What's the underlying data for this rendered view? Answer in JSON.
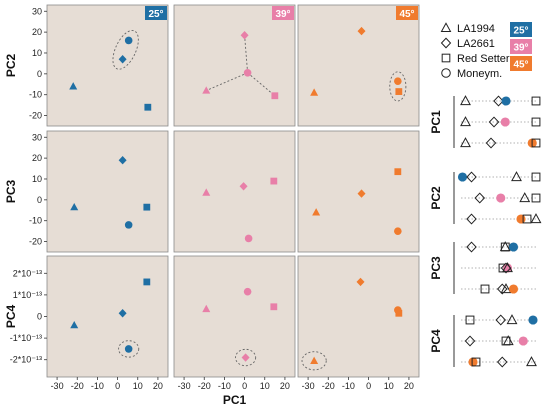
{
  "colors": {
    "25": "#1f6fa4",
    "39": "#e87fa8",
    "45": "#f07b2e",
    "panel_bg": "#e6ddd5",
    "gray": "#444444"
  },
  "chart_data": {
    "type": "scatter",
    "x_label": "PC1",
    "y_labels": [
      "PC2",
      "PC3",
      "PC4"
    ],
    "temperatures": [
      "25°",
      "39°",
      "45°"
    ],
    "xlim": [
      -35,
      25
    ],
    "x_ticks": [
      -30,
      -20,
      -10,
      0,
      10,
      20
    ],
    "rows": [
      {
        "name": "PC2",
        "ylim": [
          -25,
          33
        ],
        "ticks": [
          -20,
          -10,
          0,
          10,
          20,
          30
        ],
        "tick_labels": [
          "-20",
          "-10",
          "0",
          "10",
          "20",
          "30"
        ]
      },
      {
        "name": "PC3",
        "ylim": [
          -25,
          33
        ],
        "ticks": [
          -20,
          -10,
          0,
          10,
          20,
          30
        ],
        "tick_labels": [
          "-20",
          "-10",
          "0",
          "10",
          "20",
          "30"
        ]
      },
      {
        "name": "PC4",
        "ylim": [
          -2.8,
          2.8
        ],
        "ticks": [
          -2,
          -1,
          0,
          1,
          2
        ],
        "tick_labels": [
          "-2*10⁻¹³",
          "-1*10⁻¹³",
          "0",
          "1*10⁻¹³",
          "2*10⁻¹³"
        ]
      }
    ],
    "genotypes": [
      {
        "name": "LA1994",
        "shape": "triangle"
      },
      {
        "name": "LA2661",
        "shape": "diamond"
      },
      {
        "name": "Red Setter",
        "shape": "square"
      },
      {
        "name": "Moneym.",
        "shape": "circle"
      }
    ],
    "points": [
      [
        [
          [
            -22,
            -6
          ],
          [
            2.5,
            7
          ],
          [
            15,
            -16
          ],
          [
            5.5,
            16
          ]
        ],
        [
          [
            -19,
            -8
          ],
          [
            0,
            18.5
          ],
          [
            15,
            -10.5
          ],
          [
            1.5,
            0.5
          ]
        ],
        [
          [
            -27,
            -9
          ],
          [
            -3.5,
            20.5
          ],
          [
            15,
            -8.5
          ],
          [
            14.5,
            -3.5
          ]
        ]
      ],
      [
        [
          [
            -21.5,
            -3.5
          ],
          [
            2.5,
            19
          ],
          [
            14.5,
            -3.5
          ],
          [
            5.5,
            -12
          ]
        ],
        [
          [
            -19,
            3.5
          ],
          [
            -0.5,
            6.5
          ],
          [
            14.5,
            9
          ],
          [
            2,
            -18.5
          ]
        ],
        [
          [
            -26,
            -6
          ],
          [
            -3.5,
            3
          ],
          [
            14.5,
            13.5
          ],
          [
            14.5,
            -15
          ]
        ]
      ],
      [
        [
          [
            -21.5,
            -0.4
          ],
          [
            2.5,
            0.15
          ],
          [
            14.5,
            1.6
          ],
          [
            5.5,
            -1.5
          ]
        ],
        [
          [
            -19,
            0.35
          ],
          [
            0.5,
            -1.9
          ],
          [
            14.5,
            0.45
          ],
          [
            1.5,
            1.15
          ]
        ],
        [
          [
            -27,
            -2.05
          ],
          [
            -4,
            1.6
          ],
          [
            15,
            0.15
          ],
          [
            14.5,
            0.3
          ]
        ]
      ]
    ],
    "ellipses": [
      {
        "row": 0,
        "col": 0,
        "cx": 4,
        "cy": 11.5,
        "rx": 5,
        "ry": 10,
        "angle": 25
      },
      {
        "row": 0,
        "col": 2,
        "cx": 14.5,
        "cy": -6,
        "rx": 4,
        "ry": 7,
        "angle": 0
      },
      {
        "row": 2,
        "col": 0,
        "cx": 5.5,
        "cy": -1.5,
        "rx": 5,
        "ry": 0.38,
        "angle": 0
      },
      {
        "row": 2,
        "col": 1,
        "cx": 0.5,
        "cy": -1.9,
        "rx": 5,
        "ry": 0.38,
        "angle": 0
      },
      {
        "row": 2,
        "col": 2,
        "cx": -27,
        "cy": -2.05,
        "rx": 6,
        "ry": 0.42,
        "angle": 0
      }
    ],
    "star_panel": {
      "row": 0,
      "col": 1,
      "center_genotype": 3
    },
    "rank_panels": [
      {
        "name": "PC1",
        "rows": [
          [
            {
              "g": 0,
              "p": 0.06
            },
            {
              "g": 1,
              "p": 0.5
            },
            {
              "g": 3,
              "p": 0.6
            },
            {
              "g": 2,
              "p": 1.0
            }
          ],
          [
            {
              "g": 0,
              "p": 0.06
            },
            {
              "g": 1,
              "p": 0.44
            },
            {
              "g": 3,
              "p": 0.59
            },
            {
              "g": 2,
              "p": 1.0
            }
          ],
          [
            {
              "g": 0,
              "p": 0.06
            },
            {
              "g": 1,
              "p": 0.4
            },
            {
              "g": 3,
              "p": 0.95
            },
            {
              "g": 2,
              "p": 1.0
            }
          ]
        ]
      },
      {
        "name": "PC2",
        "rows": [
          [
            {
              "g": 3,
              "p": 0.02
            },
            {
              "g": 1,
              "p": 0.14
            },
            {
              "g": 0,
              "p": 0.74
            },
            {
              "g": 2,
              "p": 1.0
            }
          ],
          [
            {
              "g": 1,
              "p": 0.25
            },
            {
              "g": 3,
              "p": 0.53
            },
            {
              "g": 0,
              "p": 0.85
            },
            {
              "g": 2,
              "p": 1.0
            }
          ],
          [
            {
              "g": 1,
              "p": 0.14
            },
            {
              "g": 3,
              "p": 0.8
            },
            {
              "g": 2,
              "p": 0.88
            },
            {
              "g": 0,
              "p": 1.0
            }
          ]
        ]
      },
      {
        "name": "PC3",
        "rows": [
          [
            {
              "g": 1,
              "p": 0.14
            },
            {
              "g": 2,
              "p": 0.59
            },
            {
              "g": 0,
              "p": 0.59
            },
            {
              "g": 3,
              "p": 0.7
            }
          ],
          [
            {
              "g": 2,
              "p": 0.56
            },
            {
              "g": 3,
              "p": 0.62
            },
            {
              "g": 1,
              "p": 0.6
            },
            {
              "g": 0,
              "p": 0.62
            }
          ],
          [
            {
              "g": 2,
              "p": 0.32
            },
            {
              "g": 1,
              "p": 0.55
            },
            {
              "g": 0,
              "p": 0.6
            },
            {
              "g": 3,
              "p": 0.7
            }
          ]
        ]
      },
      {
        "name": "PC4",
        "rows": [
          [
            {
              "g": 2,
              "p": 0.12
            },
            {
              "g": 1,
              "p": 0.53
            },
            {
              "g": 0,
              "p": 0.68
            },
            {
              "g": 3,
              "p": 0.96
            }
          ],
          [
            {
              "g": 1,
              "p": 0.12
            },
            {
              "g": 2,
              "p": 0.6
            },
            {
              "g": 0,
              "p": 0.63
            },
            {
              "g": 3,
              "p": 0.83
            }
          ],
          [
            {
              "g": 3,
              "p": 0.16
            },
            {
              "g": 2,
              "p": 0.2
            },
            {
              "g": 1,
              "p": 0.55
            },
            {
              "g": 0,
              "p": 0.94
            }
          ]
        ]
      }
    ]
  }
}
